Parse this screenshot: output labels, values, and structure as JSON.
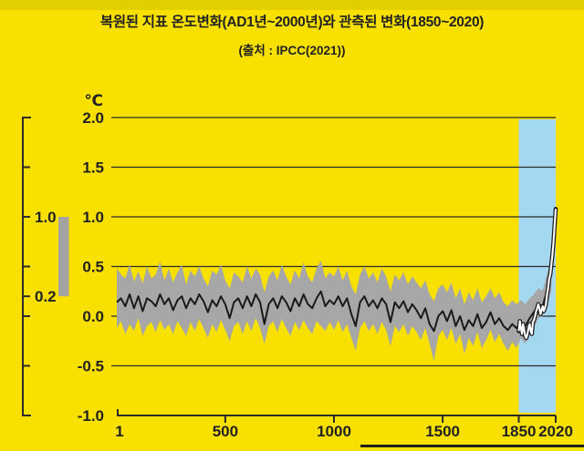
{
  "header": {
    "title": "복원된 지표 온도변화(AD1년~2000년)와 관측된 변화(1850~2020)",
    "subtitle": "(출처 : IPCC(2021))"
  },
  "colors": {
    "background": "#f8e000",
    "top_strip": "#e2cf00",
    "highlight_blue": "#a4d7f0",
    "band_gray": "#a7a7a7",
    "side_bar_gray": "#a3a3a3",
    "line_black": "#1a1a1a",
    "observed_white": "#ffffff",
    "grid_line": "#2b2b2b",
    "text": "#222222",
    "bottom_divider": "#1f1f1f"
  },
  "chart_data": {
    "type": "line",
    "title": "복원된 지표 온도변화(AD1년~2000년)와 관측된 변화(1850~2020)",
    "subtitle": "(출처 : IPCC(2021))",
    "unit_label": "℃",
    "axis_range": {
      "x": [
        1,
        2020
      ],
      "y": [
        -1.0,
        2.0
      ]
    },
    "grid": true,
    "x_ticks": [
      {
        "year": 1,
        "label": "1"
      },
      {
        "year": 500,
        "label": "500"
      },
      {
        "year": 1000,
        "label": "1000"
      },
      {
        "year": 1500,
        "label": "1500"
      },
      {
        "year": 1850,
        "label": "1850"
      },
      {
        "year": 2020,
        "label": "2020"
      }
    ],
    "y_ticks": [
      {
        "value": 2.0,
        "label": "2.0"
      },
      {
        "value": 1.5,
        "label": "1.5"
      },
      {
        "value": 1.0,
        "label": "1.0"
      },
      {
        "value": 0.5,
        "label": "0.5"
      },
      {
        "value": 0.0,
        "label": "0.0"
      },
      {
        "value": -0.5,
        "label": "-0.5"
      },
      {
        "value": -1.0,
        "label": "-1.0"
      }
    ],
    "left_scale": {
      "range": [
        2.0,
        -1.0
      ],
      "minor_tick_values": [
        1.5,
        1.0,
        0.5,
        0.2,
        0.0,
        -0.5
      ],
      "labeled_ticks": [
        {
          "value": 1.0,
          "label": "1.0"
        },
        {
          "value": 0.2,
          "label": "0.2"
        }
      ],
      "bar_range": [
        0.2,
        1.0
      ]
    },
    "highlight_region": {
      "x_start": 1850,
      "x_end": 2020
    },
    "series": [
      {
        "name": "reconstructed_range",
        "type": "band",
        "points": [
          [
            1,
            -0.12,
            0.48
          ],
          [
            20,
            -0.05,
            0.42
          ],
          [
            40,
            -0.18,
            0.38
          ],
          [
            60,
            -0.08,
            0.52
          ],
          [
            80,
            -0.15,
            0.35
          ],
          [
            100,
            -0.02,
            0.45
          ],
          [
            120,
            -0.2,
            0.33
          ],
          [
            140,
            -0.1,
            0.5
          ],
          [
            160,
            -0.06,
            0.38
          ],
          [
            180,
            -0.16,
            0.42
          ],
          [
            200,
            -0.04,
            0.55
          ],
          [
            220,
            -0.14,
            0.36
          ],
          [
            240,
            -0.08,
            0.48
          ],
          [
            260,
            -0.18,
            0.34
          ],
          [
            280,
            -0.05,
            0.44
          ],
          [
            300,
            -0.12,
            0.52
          ],
          [
            320,
            -0.2,
            0.32
          ],
          [
            340,
            -0.06,
            0.46
          ],
          [
            360,
            -0.15,
            0.4
          ],
          [
            380,
            -0.03,
            0.5
          ],
          [
            400,
            -0.12,
            0.38
          ],
          [
            420,
            -0.22,
            0.3
          ],
          [
            440,
            -0.08,
            0.46
          ],
          [
            460,
            -0.16,
            0.42
          ],
          [
            480,
            -0.04,
            0.52
          ],
          [
            500,
            -0.14,
            0.36
          ],
          [
            520,
            -0.25,
            0.28
          ],
          [
            540,
            -0.1,
            0.44
          ],
          [
            560,
            -0.06,
            0.4
          ],
          [
            580,
            -0.18,
            0.34
          ],
          [
            600,
            -0.05,
            0.5
          ],
          [
            620,
            -0.15,
            0.38
          ],
          [
            640,
            -0.02,
            0.48
          ],
          [
            660,
            -0.12,
            0.42
          ],
          [
            680,
            -0.28,
            0.24
          ],
          [
            700,
            -0.1,
            0.4
          ],
          [
            720,
            -0.05,
            0.46
          ],
          [
            740,
            -0.16,
            0.36
          ],
          [
            760,
            -0.03,
            0.52
          ],
          [
            780,
            -0.12,
            0.4
          ],
          [
            800,
            -0.2,
            0.32
          ],
          [
            820,
            -0.06,
            0.46
          ],
          [
            840,
            -0.14,
            0.38
          ],
          [
            860,
            -0.04,
            0.54
          ],
          [
            880,
            -0.12,
            0.4
          ],
          [
            900,
            -0.18,
            0.34
          ],
          [
            920,
            -0.05,
            0.48
          ],
          [
            940,
            -0.1,
            0.56
          ],
          [
            960,
            -0.15,
            0.38
          ],
          [
            980,
            -0.06,
            0.44
          ],
          [
            1000,
            -0.14,
            0.4
          ],
          [
            1020,
            -0.04,
            0.5
          ],
          [
            1040,
            -0.16,
            0.36
          ],
          [
            1060,
            -0.08,
            0.46
          ],
          [
            1080,
            -0.22,
            0.3
          ],
          [
            1100,
            -0.35,
            0.22
          ],
          [
            1120,
            -0.12,
            0.42
          ],
          [
            1140,
            -0.05,
            0.5
          ],
          [
            1160,
            -0.15,
            0.38
          ],
          [
            1180,
            -0.08,
            0.44
          ],
          [
            1200,
            -0.18,
            0.34
          ],
          [
            1220,
            -0.06,
            0.48
          ],
          [
            1240,
            -0.14,
            0.4
          ],
          [
            1260,
            -0.3,
            0.25
          ],
          [
            1280,
            -0.1,
            0.42
          ],
          [
            1300,
            -0.16,
            0.36
          ],
          [
            1320,
            -0.08,
            0.44
          ],
          [
            1340,
            -0.2,
            0.32
          ],
          [
            1360,
            -0.1,
            0.4
          ],
          [
            1380,
            -0.16,
            0.34
          ],
          [
            1400,
            -0.24,
            0.28
          ],
          [
            1420,
            -0.12,
            0.36
          ],
          [
            1440,
            -0.28,
            0.22
          ],
          [
            1460,
            -0.45,
            0.15
          ],
          [
            1480,
            -0.2,
            0.28
          ],
          [
            1500,
            -0.14,
            0.32
          ],
          [
            1520,
            -0.24,
            0.24
          ],
          [
            1540,
            -0.12,
            0.34
          ],
          [
            1560,
            -0.28,
            0.18
          ],
          [
            1580,
            -0.18,
            0.28
          ],
          [
            1600,
            -0.38,
            0.12
          ],
          [
            1620,
            -0.22,
            0.24
          ],
          [
            1640,
            -0.3,
            0.16
          ],
          [
            1660,
            -0.16,
            0.28
          ],
          [
            1680,
            -0.32,
            0.14
          ],
          [
            1700,
            -0.24,
            0.2
          ],
          [
            1720,
            -0.14,
            0.28
          ],
          [
            1740,
            -0.26,
            0.18
          ],
          [
            1760,
            -0.18,
            0.24
          ],
          [
            1780,
            -0.28,
            0.14
          ],
          [
            1800,
            -0.35,
            0.1
          ],
          [
            1820,
            -0.26,
            0.16
          ],
          [
            1840,
            -0.32,
            0.12
          ],
          [
            1860,
            -0.22,
            0.16
          ],
          [
            1880,
            -0.28,
            0.12
          ],
          [
            1900,
            -0.18,
            0.18
          ],
          [
            1920,
            -0.12,
            0.22
          ],
          [
            1940,
            -0.02,
            0.28
          ],
          [
            1960,
            0.0,
            0.26
          ],
          [
            1980,
            0.1,
            0.42
          ],
          [
            2000,
            0.25,
            0.6
          ]
        ]
      },
      {
        "name": "reconstructed_median",
        "type": "line",
        "points": [
          [
            1,
            0.14
          ],
          [
            20,
            0.18
          ],
          [
            40,
            0.1
          ],
          [
            60,
            0.22
          ],
          [
            80,
            0.08
          ],
          [
            100,
            0.2
          ],
          [
            120,
            0.05
          ],
          [
            140,
            0.18
          ],
          [
            160,
            0.15
          ],
          [
            180,
            0.1
          ],
          [
            200,
            0.22
          ],
          [
            220,
            0.12
          ],
          [
            240,
            0.18
          ],
          [
            260,
            0.06
          ],
          [
            280,
            0.16
          ],
          [
            300,
            0.2
          ],
          [
            320,
            0.08
          ],
          [
            340,
            0.18
          ],
          [
            360,
            0.12
          ],
          [
            380,
            0.22
          ],
          [
            400,
            0.15
          ],
          [
            420,
            0.04
          ],
          [
            440,
            0.16
          ],
          [
            460,
            0.1
          ],
          [
            480,
            0.2
          ],
          [
            500,
            0.12
          ],
          [
            520,
            -0.02
          ],
          [
            540,
            0.14
          ],
          [
            560,
            0.18
          ],
          [
            580,
            0.08
          ],
          [
            600,
            0.2
          ],
          [
            620,
            0.1
          ],
          [
            640,
            0.22
          ],
          [
            660,
            0.14
          ],
          [
            680,
            -0.08
          ],
          [
            700,
            0.12
          ],
          [
            720,
            0.18
          ],
          [
            740,
            0.08
          ],
          [
            760,
            0.2
          ],
          [
            780,
            0.14
          ],
          [
            800,
            0.05
          ],
          [
            820,
            0.18
          ],
          [
            840,
            0.1
          ],
          [
            860,
            0.22
          ],
          [
            880,
            0.12
          ],
          [
            900,
            0.08
          ],
          [
            920,
            0.18
          ],
          [
            940,
            0.25
          ],
          [
            960,
            0.1
          ],
          [
            980,
            0.16
          ],
          [
            1000,
            0.12
          ],
          [
            1020,
            0.2
          ],
          [
            1040,
            0.1
          ],
          [
            1060,
            0.18
          ],
          [
            1080,
            0.02
          ],
          [
            1100,
            -0.1
          ],
          [
            1120,
            0.14
          ],
          [
            1140,
            0.2
          ],
          [
            1160,
            0.1
          ],
          [
            1180,
            0.16
          ],
          [
            1200,
            0.08
          ],
          [
            1220,
            0.18
          ],
          [
            1240,
            0.12
          ],
          [
            1260,
            -0.06
          ],
          [
            1280,
            0.14
          ],
          [
            1300,
            0.08
          ],
          [
            1320,
            0.15
          ],
          [
            1340,
            0.04
          ],
          [
            1360,
            0.12
          ],
          [
            1380,
            0.06
          ],
          [
            1400,
            -0.02
          ],
          [
            1420,
            0.08
          ],
          [
            1440,
            -0.08
          ],
          [
            1460,
            -0.15
          ],
          [
            1480,
            0.0
          ],
          [
            1500,
            0.05
          ],
          [
            1520,
            -0.05
          ],
          [
            1540,
            0.06
          ],
          [
            1560,
            -0.1
          ],
          [
            1580,
            0.0
          ],
          [
            1600,
            -0.14
          ],
          [
            1620,
            -0.04
          ],
          [
            1640,
            -0.1
          ],
          [
            1660,
            0.02
          ],
          [
            1680,
            -0.12
          ],
          [
            1700,
            -0.06
          ],
          [
            1720,
            0.04
          ],
          [
            1740,
            -0.08
          ],
          [
            1760,
            -0.02
          ],
          [
            1780,
            -0.1
          ],
          [
            1800,
            -0.14
          ],
          [
            1820,
            -0.08
          ],
          [
            1840,
            -0.12
          ],
          [
            1860,
            -0.06
          ],
          [
            1880,
            -0.1
          ],
          [
            1900,
            -0.02
          ],
          [
            1920,
            0.04
          ],
          [
            1940,
            0.12
          ],
          [
            1960,
            0.1
          ],
          [
            1980,
            0.26
          ],
          [
            2000,
            0.42
          ]
        ]
      },
      {
        "name": "observed",
        "type": "line",
        "points": [
          [
            1850,
            -0.15
          ],
          [
            1855,
            -0.05
          ],
          [
            1860,
            -0.12
          ],
          [
            1865,
            -0.18
          ],
          [
            1870,
            -0.08
          ],
          [
            1875,
            -0.14
          ],
          [
            1880,
            -0.2
          ],
          [
            1885,
            -0.22
          ],
          [
            1890,
            -0.18
          ],
          [
            1895,
            -0.12
          ],
          [
            1900,
            -0.08
          ],
          [
            1905,
            -0.15
          ],
          [
            1910,
            -0.18
          ],
          [
            1915,
            -0.06
          ],
          [
            1920,
            -0.04
          ],
          [
            1925,
            0.0
          ],
          [
            1930,
            0.05
          ],
          [
            1935,
            0.08
          ],
          [
            1940,
            0.12
          ],
          [
            1945,
            0.08
          ],
          [
            1950,
            0.02
          ],
          [
            1955,
            0.06
          ],
          [
            1960,
            0.1
          ],
          [
            1965,
            0.05
          ],
          [
            1970,
            0.08
          ],
          [
            1975,
            0.12
          ],
          [
            1980,
            0.22
          ],
          [
            1985,
            0.28
          ],
          [
            1990,
            0.38
          ],
          [
            1995,
            0.42
          ],
          [
            2000,
            0.52
          ],
          [
            2005,
            0.62
          ],
          [
            2010,
            0.75
          ],
          [
            2015,
            0.92
          ],
          [
            2020,
            1.08
          ]
        ]
      }
    ]
  }
}
